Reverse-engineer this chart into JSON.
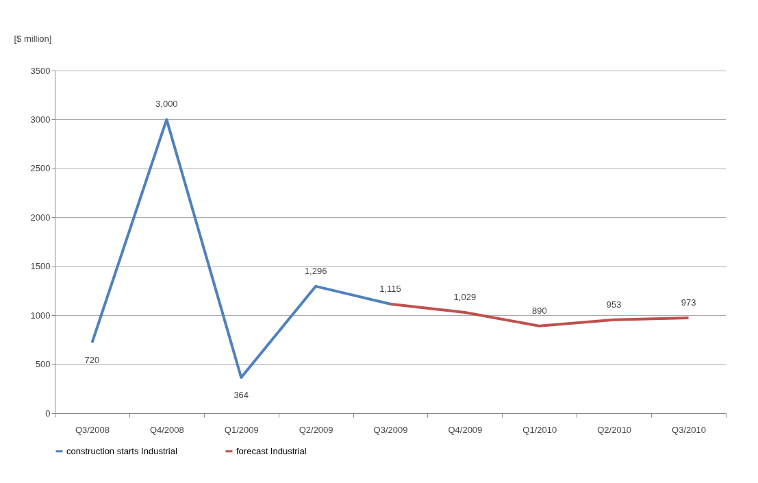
{
  "chart_data": {
    "type": "line",
    "ylabel": "[$ million]",
    "categories": [
      "Q3/2008",
      "Q4/2008",
      "Q1/2009",
      "Q2/2009",
      "Q3/2009",
      "Q4/2009",
      "Q1/2010",
      "Q2/2010",
      "Q3/2010"
    ],
    "series": [
      {
        "name": "construction starts  Industrial",
        "color": "#4f81bd",
        "values": [
          720,
          3000,
          364,
          1296,
          1115,
          null,
          null,
          null,
          null
        ],
        "value_labels": [
          "720",
          "3,000",
          "364",
          "1,296",
          "1,115",
          null,
          null,
          null,
          null
        ]
      },
      {
        "name": "forecast Industrial",
        "color": "#c0504d",
        "values": [
          null,
          null,
          null,
          null,
          1115,
          1029,
          890,
          953,
          973
        ],
        "value_labels": [
          null,
          null,
          null,
          null,
          null,
          "1,029",
          "890",
          "953",
          "973"
        ]
      }
    ],
    "ylim": [
      0,
      3500
    ],
    "yticks": [
      0,
      500,
      1000,
      1500,
      2000,
      2500,
      3000,
      3500
    ],
    "grid": "y",
    "legend": "bottom"
  }
}
